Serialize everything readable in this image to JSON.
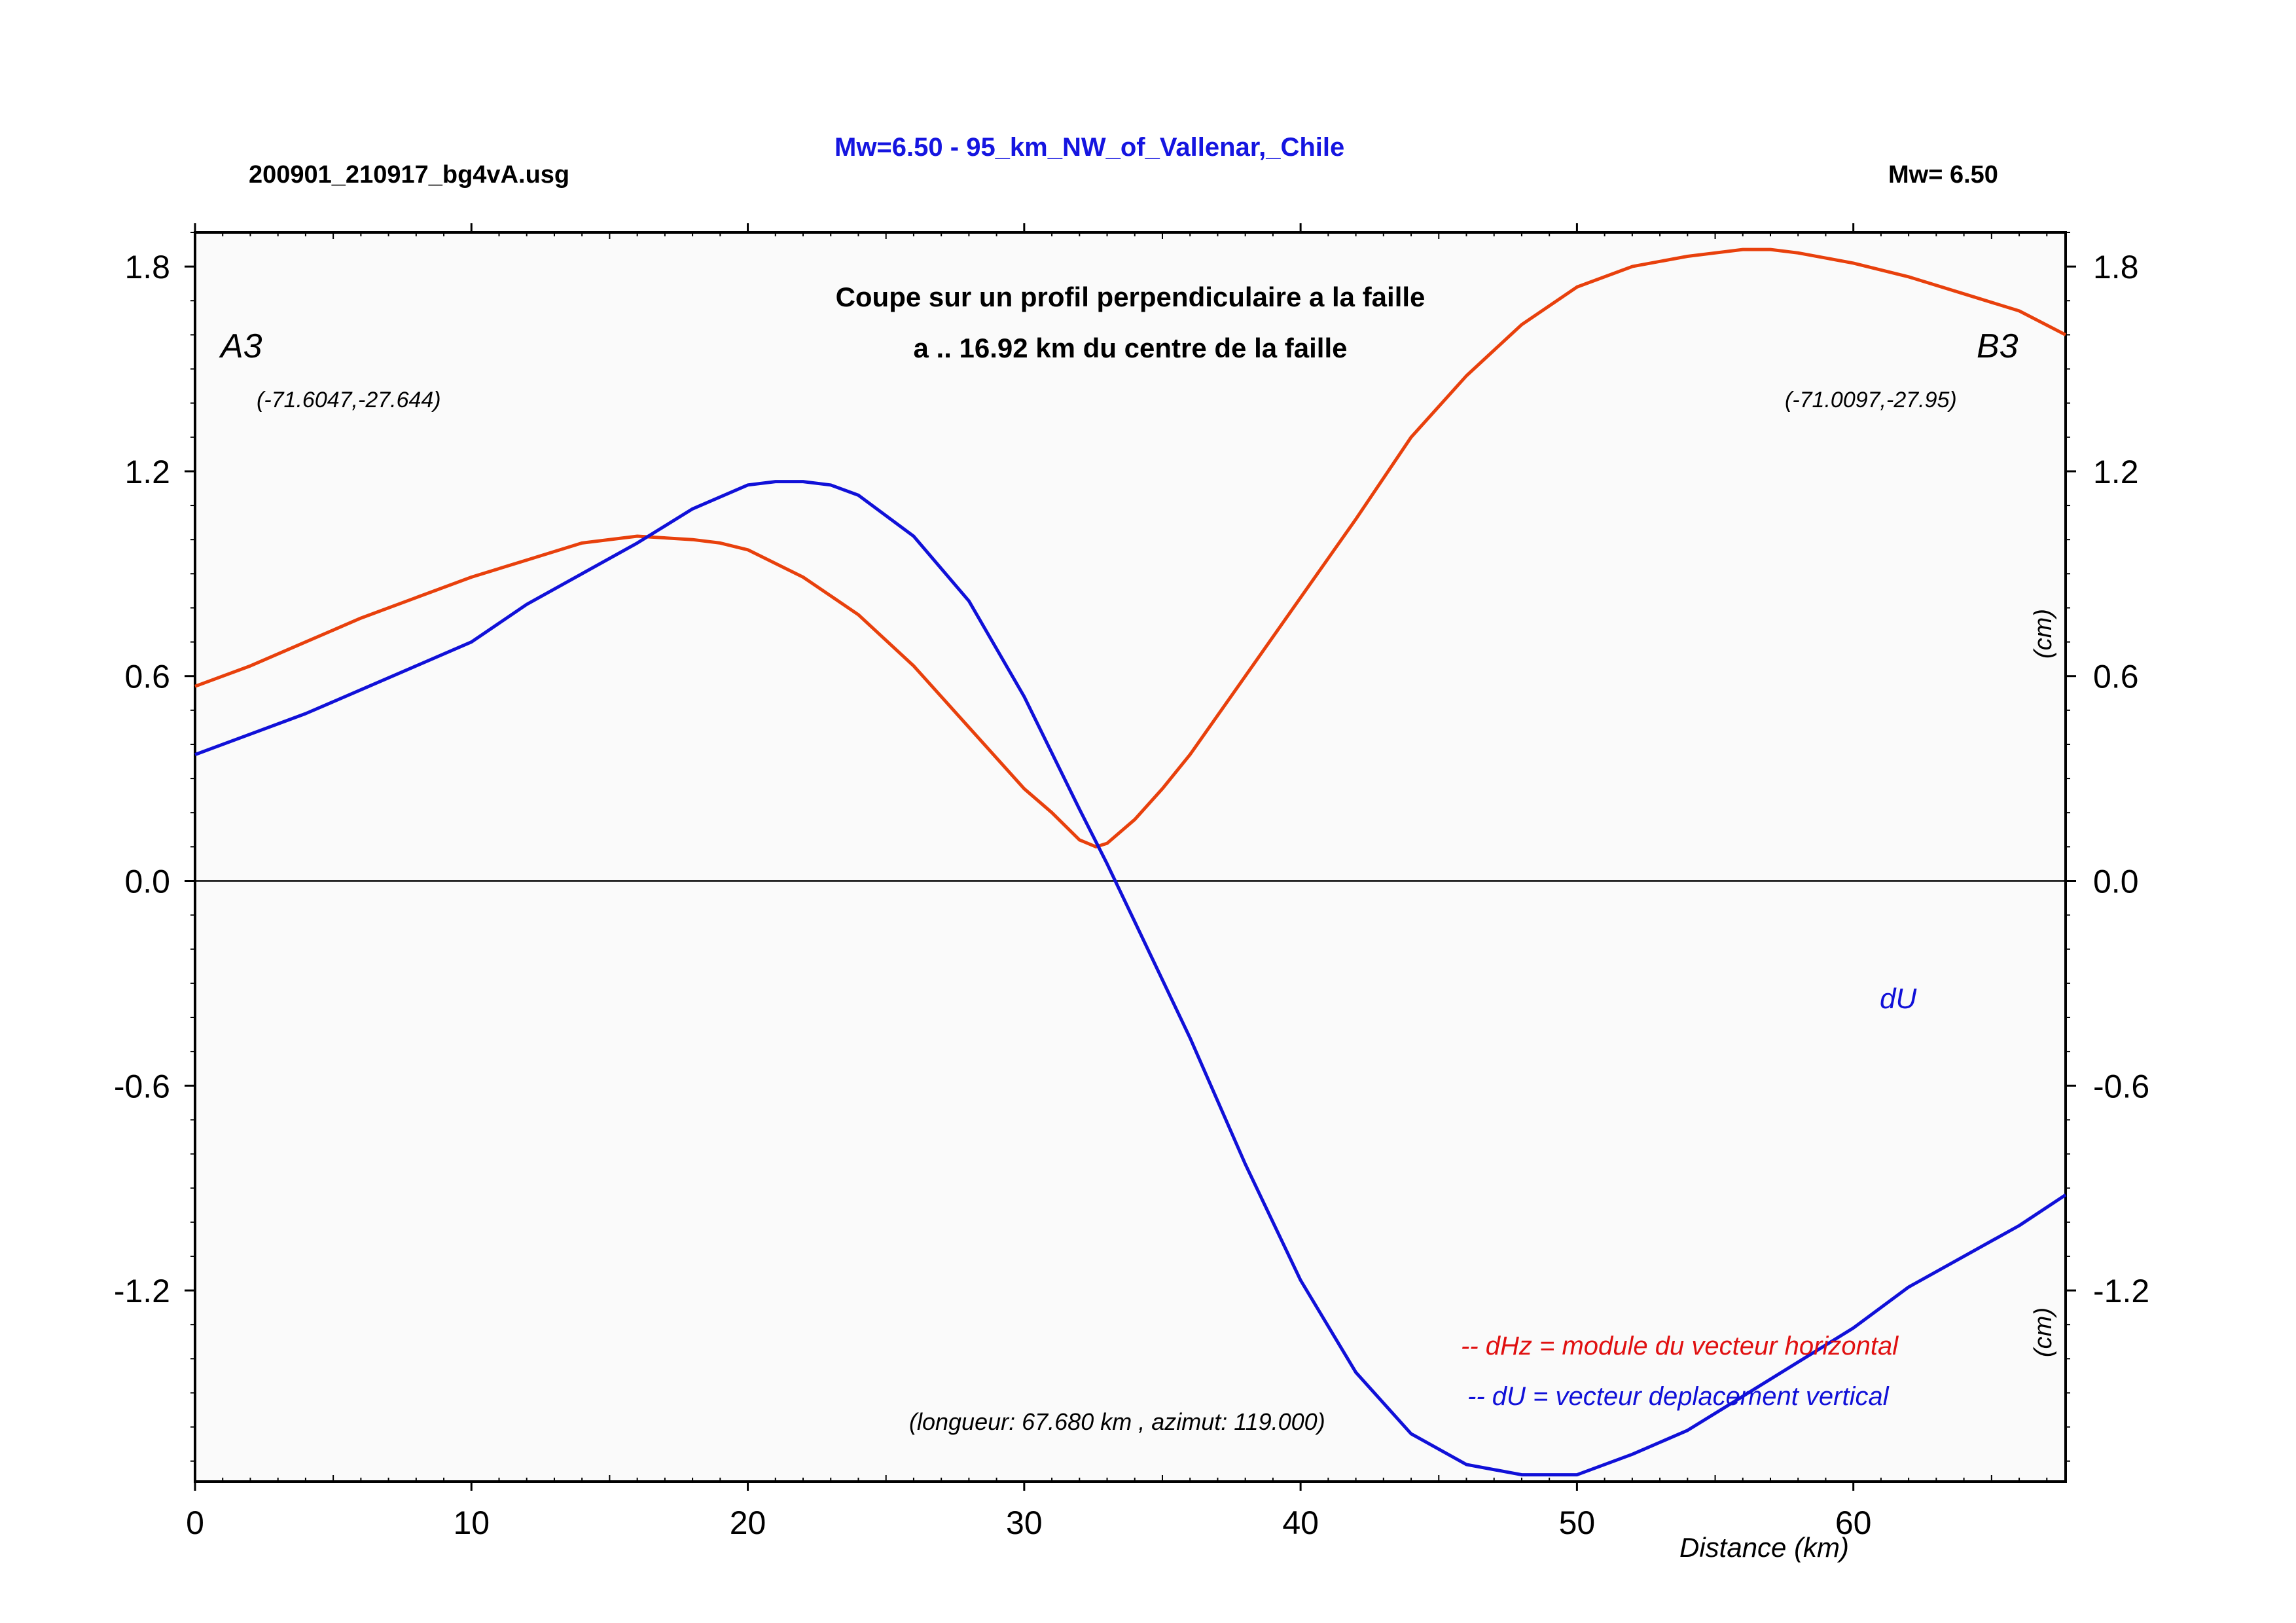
{
  "header": {
    "file_name": "200901_210917_bg4vA.usg",
    "event_title": "Mw=6.50 - 95_km_NW_of_Vallenar,_Chile",
    "magnitude": "Mw= 6.50"
  },
  "colors": {
    "dHz": "#e8400c",
    "dU": "#1010d8",
    "plot_background": "#fafafa",
    "title_blue": "#1515e0",
    "legend_dHz": "#e01010"
  },
  "chart_data": {
    "type": "line",
    "title_line1": "Coupe sur un profil perpendiculaire a la faille",
    "title_line2": "a .. 16.92 km du centre de la faille",
    "xlabel": "Distance (km)",
    "ylabel_upper": "(cm)",
    "ylabel_lower": "(cm)",
    "xlim": [
      0,
      67.68
    ],
    "ylim": [
      -1.76,
      1.9
    ],
    "x_ticks": [
      0,
      10,
      20,
      30,
      40,
      50,
      60
    ],
    "y_ticks": [
      1.8,
      1.2,
      0.6,
      0.0,
      -0.6,
      -1.2
    ],
    "y_tick_labels": [
      "1.8",
      "1.2",
      "0.6",
      "0.0",
      "-0.6",
      "-1.2"
    ],
    "zero_line": 0.0,
    "endpoints": {
      "start_label": "A3",
      "start_coords": "(-71.6047,-27.644)",
      "end_label": "B3",
      "end_coords": "(-71.0097,-27.95)"
    },
    "profile_info": "(longueur: 67.680 km , azimut: 119.000)",
    "series_tag": "dU",
    "legend": {
      "dHz": "-- dHz = module du vecteur horizontal",
      "dU": "-- dU =  vecteur deplacement vertical"
    },
    "series": [
      {
        "name": "dHz",
        "x": [
          0,
          2,
          4,
          6,
          8,
          10,
          12,
          14,
          16,
          18,
          19,
          20,
          22,
          24,
          26,
          28,
          30,
          31,
          32,
          32.6,
          33,
          34,
          35,
          36,
          38,
          40,
          42,
          44,
          46,
          48,
          50,
          52,
          54,
          55,
          56,
          57,
          58,
          60,
          62,
          64,
          66,
          67.68
        ],
        "values": [
          0.57,
          0.63,
          0.7,
          0.77,
          0.83,
          0.89,
          0.94,
          0.99,
          1.01,
          1.0,
          0.99,
          0.97,
          0.89,
          0.78,
          0.63,
          0.45,
          0.27,
          0.2,
          0.12,
          0.1,
          0.11,
          0.18,
          0.27,
          0.37,
          0.6,
          0.83,
          1.06,
          1.3,
          1.48,
          1.63,
          1.74,
          1.8,
          1.83,
          1.84,
          1.85,
          1.85,
          1.84,
          1.81,
          1.77,
          1.72,
          1.67,
          1.6
        ]
      },
      {
        "name": "dU",
        "x": [
          0,
          2,
          4,
          6,
          8,
          10,
          12,
          14,
          16,
          18,
          20,
          21,
          22,
          23,
          24,
          26,
          28,
          30,
          32,
          33,
          34,
          36,
          38,
          40,
          42,
          44,
          46,
          48,
          50,
          52,
          54,
          56,
          58,
          60,
          62,
          64,
          66,
          67.68
        ],
        "values": [
          0.37,
          0.43,
          0.49,
          0.56,
          0.63,
          0.7,
          0.81,
          0.9,
          0.99,
          1.09,
          1.16,
          1.17,
          1.17,
          1.16,
          1.13,
          1.01,
          0.82,
          0.54,
          0.21,
          0.05,
          -0.12,
          -0.46,
          -0.83,
          -1.17,
          -1.44,
          -1.62,
          -1.71,
          -1.74,
          -1.74,
          -1.68,
          -1.61,
          -1.51,
          -1.41,
          -1.31,
          -1.19,
          -1.1,
          -1.01,
          -0.92
        ]
      }
    ]
  }
}
